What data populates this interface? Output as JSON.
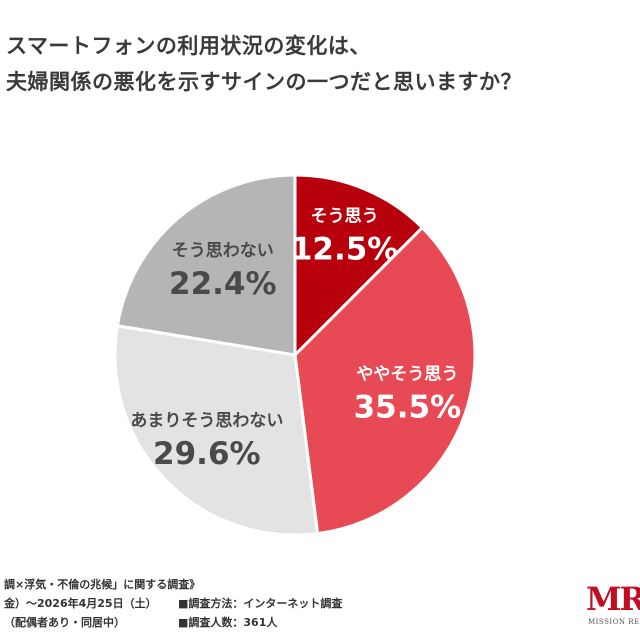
{
  "header": {
    "title_line1": "スマートフォンの利用状況の変化は、",
    "title_line2": "夫婦関係の悪化を示すサインの一つだと思いますか？"
  },
  "chart_data": {
    "type": "pie",
    "start": "top",
    "direction": "clockwise",
    "slices": [
      {
        "label": "そう思う",
        "value": 12.5,
        "value_label": "12.5%",
        "color": "#b8000c",
        "text_color": "#ffffff"
      },
      {
        "label": "ややそう思う",
        "value": 35.5,
        "value_label": "35.5%",
        "color": "#e84a55",
        "text_color": "#ffffff"
      },
      {
        "label": "あまりそう思わない",
        "value": 29.6,
        "value_label": "29.6%",
        "color": "#e3e3e3",
        "text_color": "#4a4a4a"
      },
      {
        "label": "そう思わない",
        "value": 22.4,
        "value_label": "22.4%",
        "color": "#b5b5b5",
        "text_color": "#4a4a4a"
      }
    ]
  },
  "footer": {
    "line1": "調×浮気・不倫の兆候」に関する調査》",
    "line2_left": "金）〜2026年4月25日（土）",
    "line2_right": "■調査方法：インターネット調査",
    "line3_left": "（配偶者あり・同居中）",
    "line3_right": "■調査人数：361人"
  },
  "logo": {
    "mark": "MR",
    "sub": "MISSION RESEA"
  }
}
